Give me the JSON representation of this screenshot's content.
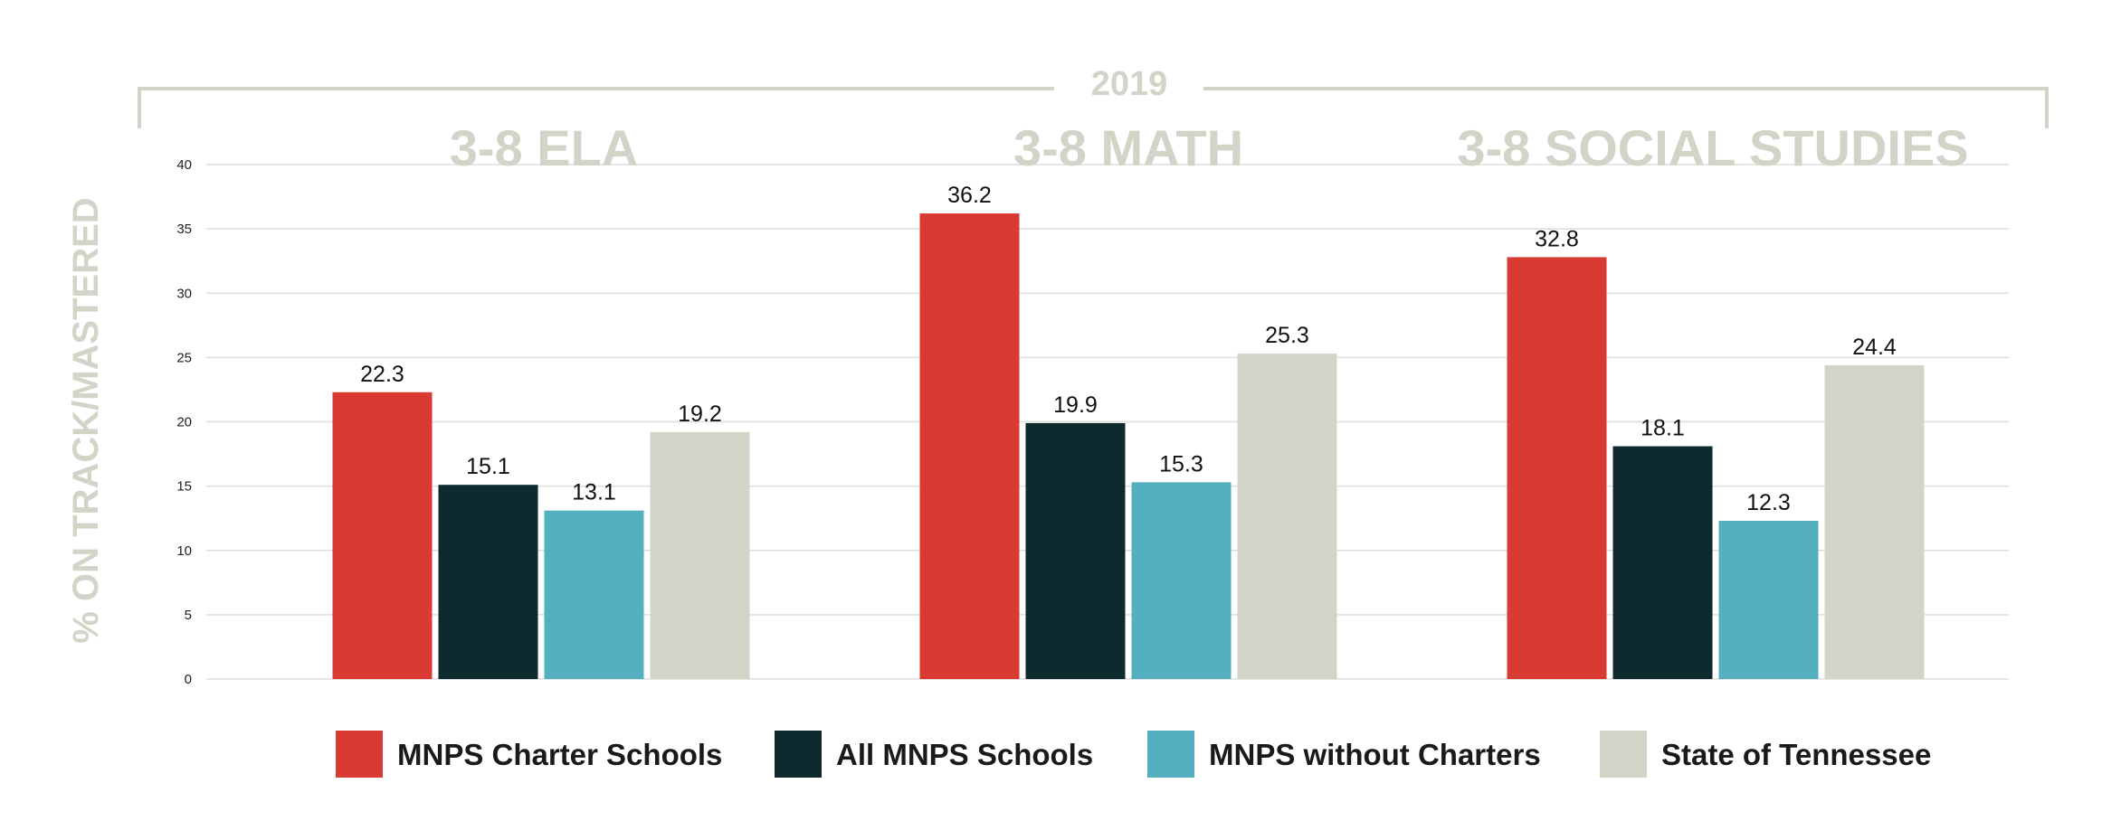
{
  "chart_data": {
    "type": "bar",
    "title": "2019",
    "ylabel": "% ON TRACK/MASTERED",
    "ylim": [
      0,
      40
    ],
    "yticks": [
      0,
      5,
      10,
      15,
      20,
      25,
      30,
      35,
      40
    ],
    "categories": [
      "3-8 ELA",
      "3-8 MATH",
      "3-8 SOCIAL STUDIES"
    ],
    "series": [
      {
        "name": "MNPS Charter Schools",
        "color": "#d93a31",
        "values": [
          22.3,
          36.2,
          32.8
        ]
      },
      {
        "name": "All MNPS Schools",
        "color": "#0e2a2f",
        "values": [
          15.1,
          19.9,
          18.1
        ]
      },
      {
        "name": "MNPS without Charters",
        "color": "#54b0bf",
        "values": [
          13.1,
          15.3,
          12.3
        ]
      },
      {
        "name": "State of Tennessee",
        "color": "#d2d4c8",
        "values": [
          19.2,
          25.3,
          24.4
        ]
      }
    ],
    "grid": true,
    "legend_position": "bottom"
  }
}
